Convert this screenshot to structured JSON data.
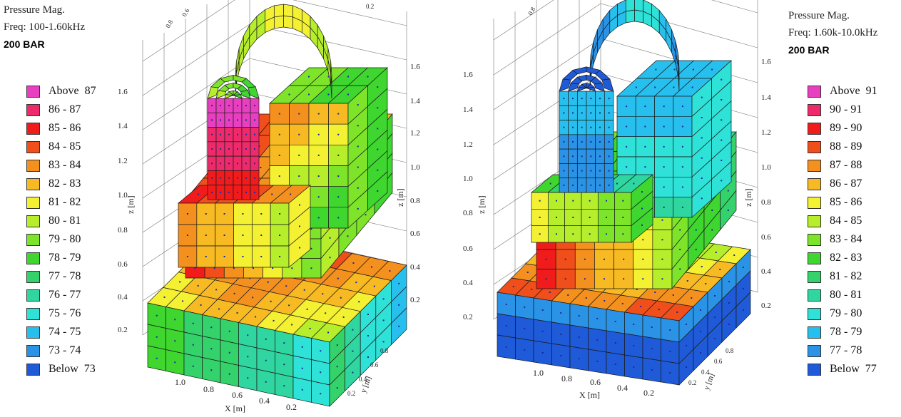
{
  "palette": [
    "#e83fc0",
    "#ef2a6a",
    "#f21b1b",
    "#f04e1a",
    "#f4911e",
    "#f7ba23",
    "#f4f132",
    "#b6ee2c",
    "#7de42a",
    "#3ed62f",
    "#34d26a",
    "#2fd6a0",
    "#2fe2d8",
    "#27c0ee",
    "#2a93e6",
    "#1f5ad8"
  ],
  "left": {
    "header": {
      "line1": "Pressure Mag.",
      "line2": "Freq: 100-1.60kHz",
      "line3": "200 BAR"
    },
    "legend": [
      "Above  87",
      "86 - 87",
      "85 - 86",
      "84 - 85",
      "83 - 84",
      "82 - 83",
      "81 - 82",
      "80 - 81",
      "79 - 80",
      "78 - 79",
      "77 - 78",
      "76 - 77",
      "75 - 76",
      "74 - 75",
      "73 - 74",
      "Below  73"
    ],
    "z_left_ticks": [
      "1.6",
      "1.4",
      "1.2",
      "1.0",
      "0.8",
      "0.6",
      "0.4",
      "0.2"
    ],
    "z_right_ticks": [
      "1.6",
      "1.4",
      "1.2",
      "1.0",
      "0.8",
      "0.6",
      "0.4",
      "0.2"
    ],
    "x_ticks": [
      "1.0",
      "0.8",
      "0.6",
      "0.4",
      "0.2"
    ],
    "y_ticks": [
      "0.2",
      "0.4",
      "0.6",
      "0.8"
    ],
    "top_ticks": [
      "0.8",
      "0.6",
      "0.2"
    ],
    "zlabel": "z [m]",
    "xlabel": "X [m]",
    "ylabel": "y [m]"
  },
  "right": {
    "header": {
      "line1": "Pressure Mag.",
      "line2": "Freq: 1.60k-10.0kHz",
      "line3": "200 BAR"
    },
    "legend": [
      "Above  91",
      "90 - 91",
      "89 - 90",
      "88 - 89",
      "87 - 88",
      "86 - 87",
      "85 - 86",
      "84 - 85",
      "83 - 84",
      "82 - 83",
      "81 - 82",
      "80 - 81",
      "79 - 80",
      "78 - 79",
      "77 - 78",
      "Below  77"
    ],
    "z_left_ticks": [
      "1.6",
      "1.4",
      "1.2",
      "1.0",
      "0.8",
      "0.6",
      "0.4",
      "0.2"
    ],
    "z_right_ticks": [
      "1.6",
      "1.4",
      "1.2",
      "1.0",
      "0.8",
      "0.6",
      "0.4",
      "0.2"
    ],
    "x_ticks": [
      "1.0",
      "0.8",
      "0.6",
      "0.4",
      "0.2"
    ],
    "y_ticks": [
      "0.2",
      "0.4",
      "0.6",
      "0.8"
    ],
    "top_ticks": [
      "0.8"
    ],
    "zlabel": "z [m]",
    "xlabel": "X [m]",
    "ylabel": "y [m]"
  }
}
